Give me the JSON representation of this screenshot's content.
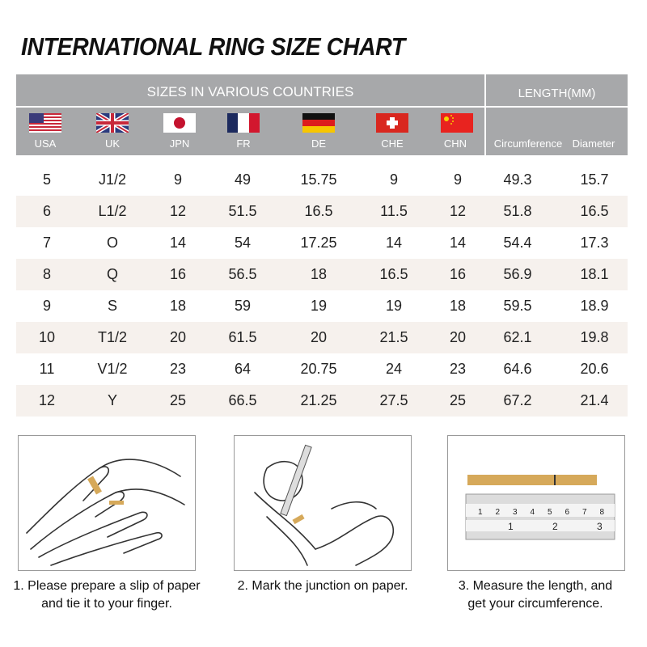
{
  "title": "INTERNATIONAL RING SIZE CHART",
  "header": {
    "sizes_label": "SIZES IN VARIOUS COUNTRIES",
    "length_label": "LENGTH(MM)",
    "countries": [
      {
        "code": "USA",
        "flag": "us-flag-icon"
      },
      {
        "code": "UK",
        "flag": "uk-flag-icon"
      },
      {
        "code": "JPN",
        "flag": "japan-flag-icon"
      },
      {
        "code": "FR",
        "flag": "france-flag-icon"
      },
      {
        "code": "DE",
        "flag": "germany-flag-icon"
      },
      {
        "code": "CHE",
        "flag": "switzerland-flag-icon"
      },
      {
        "code": "CHN",
        "flag": "china-flag-icon"
      }
    ],
    "circumference_label": "Circumference",
    "diameter_label": "Diameter"
  },
  "rows": [
    [
      "5",
      "J1/2",
      "9",
      "49",
      "15.75",
      "9",
      "9",
      "49.3",
      "15.7"
    ],
    [
      "6",
      "L1/2",
      "12",
      "51.5",
      "16.5",
      "11.5",
      "12",
      "51.8",
      "16.5"
    ],
    [
      "7",
      "O",
      "14",
      "54",
      "17.25",
      "14",
      "14",
      "54.4",
      "17.3"
    ],
    [
      "8",
      "Q",
      "16",
      "56.5",
      "18",
      "16.5",
      "16",
      "56.9",
      "18.1"
    ],
    [
      "9",
      "S",
      "18",
      "59",
      "19",
      "19",
      "18",
      "59.5",
      "18.9"
    ],
    [
      "10",
      "T1/2",
      "20",
      "61.5",
      "20",
      "21.5",
      "20",
      "62.1",
      "19.8"
    ],
    [
      "11",
      "V1/2",
      "23",
      "64",
      "20.75",
      "24",
      "23",
      "64.6",
      "20.6"
    ],
    [
      "12",
      "Y",
      "25",
      "66.5",
      "21.25",
      "27.5",
      "25",
      "67.2",
      "21.4"
    ]
  ],
  "steps": [
    {
      "line1": "1. Please prepare a slip of paper",
      "line2": "and tie it to your finger."
    },
    {
      "line1": "2. Mark the junction on paper.",
      "line2": ""
    },
    {
      "line1": "3. Measure the length, and",
      "line2": "get your circumference."
    }
  ],
  "ruler": {
    "cm_ticks": [
      "1",
      "2",
      "3",
      "4",
      "5",
      "6",
      "7",
      "8"
    ],
    "inch_ticks": [
      "1",
      "2",
      "3"
    ]
  },
  "colors": {
    "header_bg": "#a7a8aa",
    "row_shade": "#f6f1ed",
    "paper_strip": "#d6a95a"
  }
}
